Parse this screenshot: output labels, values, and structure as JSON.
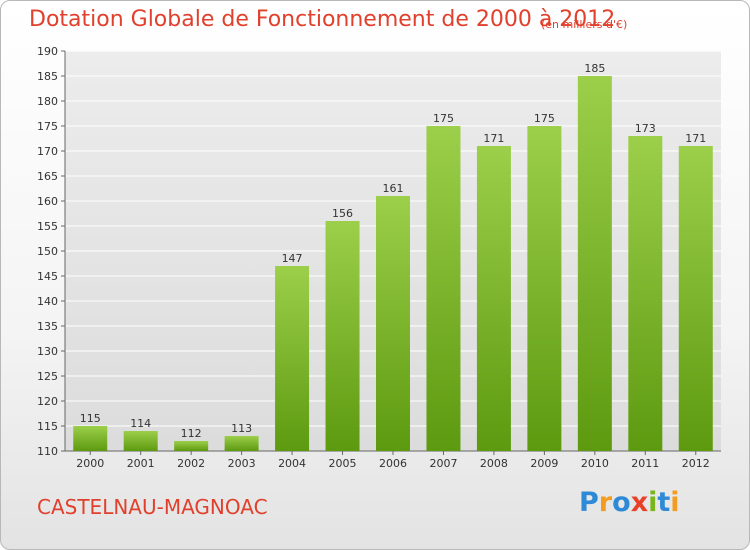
{
  "header": {
    "title": "Dotation Globale de Fonctionnement de 2000 à 2012",
    "subtitle": "(en milliers d'€)"
  },
  "footer": {
    "commune": "CASTELNAU-MAGNOAC",
    "logo_text": "Proxiti"
  },
  "colors": {
    "title": "#e0402c",
    "bar_top": "#9ccf4a",
    "bar_bottom": "#5d9a10",
    "grid": "#ffffff"
  },
  "chart_data": {
    "type": "bar",
    "title": "Dotation Globale de Fonctionnement de 2000 à 2012",
    "subtitle": "(en milliers d'€)",
    "categories": [
      "2000",
      "2001",
      "2002",
      "2003",
      "2004",
      "2005",
      "2006",
      "2007",
      "2008",
      "2009",
      "2010",
      "2011",
      "2012"
    ],
    "values": [
      115,
      114,
      112,
      113,
      147,
      156,
      161,
      175,
      171,
      175,
      185,
      173,
      171
    ],
    "ylim": [
      110,
      190
    ],
    "yticks": [
      110,
      115,
      120,
      125,
      130,
      135,
      140,
      145,
      150,
      155,
      160,
      165,
      170,
      175,
      180,
      185,
      190
    ],
    "grid": true,
    "xlabel": "",
    "ylabel": ""
  }
}
